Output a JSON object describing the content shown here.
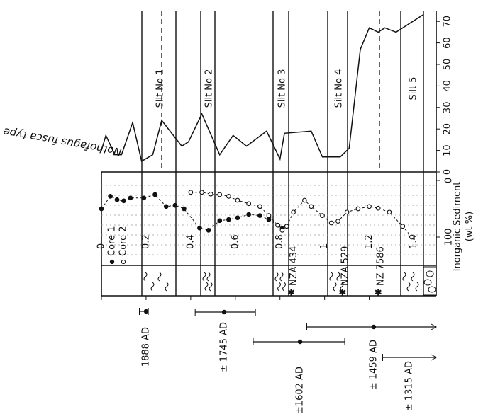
{
  "chart_data": [
    {
      "type": "line",
      "y_label": "Nothofagus fusca type",
      "color": "#111111",
      "xlim": [
        0,
        1.5
      ],
      "ylim": [
        0,
        75
      ],
      "yticks": [
        0,
        10,
        20,
        30,
        40,
        50,
        60,
        70
      ],
      "x": [
        0,
        0.02,
        0.06,
        0.09,
        0.14,
        0.18,
        0.23,
        0.27,
        0.36,
        0.39,
        0.45,
        0.53,
        0.59,
        0.65,
        0.74,
        0.8,
        0.82,
        0.94,
        0.99,
        1.07,
        1.11,
        1.16,
        1.2,
        1.24,
        1.27,
        1.32,
        1.44
      ],
      "values": [
        10,
        17,
        8,
        8,
        23,
        5,
        8,
        24,
        12,
        14,
        27,
        8,
        17,
        12,
        19,
        6,
        18,
        19,
        7,
        7,
        11,
        57,
        67,
        65,
        67,
        65,
        73
      ]
    },
    {
      "type": "scatter-line",
      "y_label": "Inorganic Sediment",
      "y_unit": "(wt %)",
      "xlim": [
        0,
        1.5
      ],
      "xticks": [
        0,
        0.2,
        0.4,
        0.6,
        0.8,
        1.0,
        1.2,
        1.4
      ],
      "ylim": [
        -15,
        150
      ],
      "yticks": [
        0,
        100
      ],
      "series": [
        {
          "name": "Core 1",
          "color": "#111111",
          "filled": true,
          "x": [
            0,
            0.04,
            0.07,
            0.1,
            0.13,
            0.19,
            0.24,
            0.29,
            0.33,
            0.37,
            0.44,
            0.48,
            0.53,
            0.57,
            0.61,
            0.66,
            0.71,
            0.75,
            0.79,
            0.81
          ],
          "values": [
            50,
            28,
            34,
            36,
            31,
            31,
            25,
            46,
            44,
            50,
            84,
            88,
            71,
            69,
            66,
            60,
            62,
            69,
            79,
            85
          ]
        },
        {
          "name": "Core 2",
          "color": "#111111",
          "filled": false,
          "x": [
            0.4,
            0.45,
            0.49,
            0.53,
            0.57,
            0.61,
            0.66,
            0.71,
            0.75,
            0.79,
            0.81,
            0.83,
            0.86,
            0.91,
            0.94,
            0.99,
            1.03,
            1.06,
            1.1,
            1.15,
            1.2,
            1.24,
            1.29,
            1.35,
            1.39
          ],
          "values": [
            21,
            21,
            24,
            25,
            28,
            35,
            41,
            46,
            62,
            79,
            88,
            81,
            56,
            35,
            46,
            62,
            75,
            72,
            56,
            50,
            46,
            49,
            56,
            81,
            100
          ]
        }
      ]
    }
  ],
  "silts": [
    "Silt No 1",
    "Silt No 2",
    "Silt No 3",
    "Silt No 4",
    "Silt 5"
  ],
  "samples": [
    {
      "label": "NZA 434",
      "depth": 0.85
    },
    {
      "label": "NZA 529",
      "depth": 1.08
    },
    {
      "label": "NZ 7586",
      "depth": 1.24
    }
  ],
  "dates": [
    {
      "label": "1888 AD",
      "depth": 0.2,
      "range": [
        0.17,
        0.21
      ]
    },
    {
      "label": "± 1745 AD",
      "depth": 0.55,
      "range": [
        0.42,
        0.69
      ]
    },
    {
      "label": "±1602 AD",
      "depth": 0.89,
      "range": [
        0.68,
        1.09
      ]
    },
    {
      "label": "± 1459 AD",
      "depth": 1.22,
      "range": [
        0.92,
        1.5
      ]
    },
    {
      "label": "± 1315 AD",
      "depth": 1.5,
      "range": [
        1.26,
        1.5
      ]
    }
  ]
}
